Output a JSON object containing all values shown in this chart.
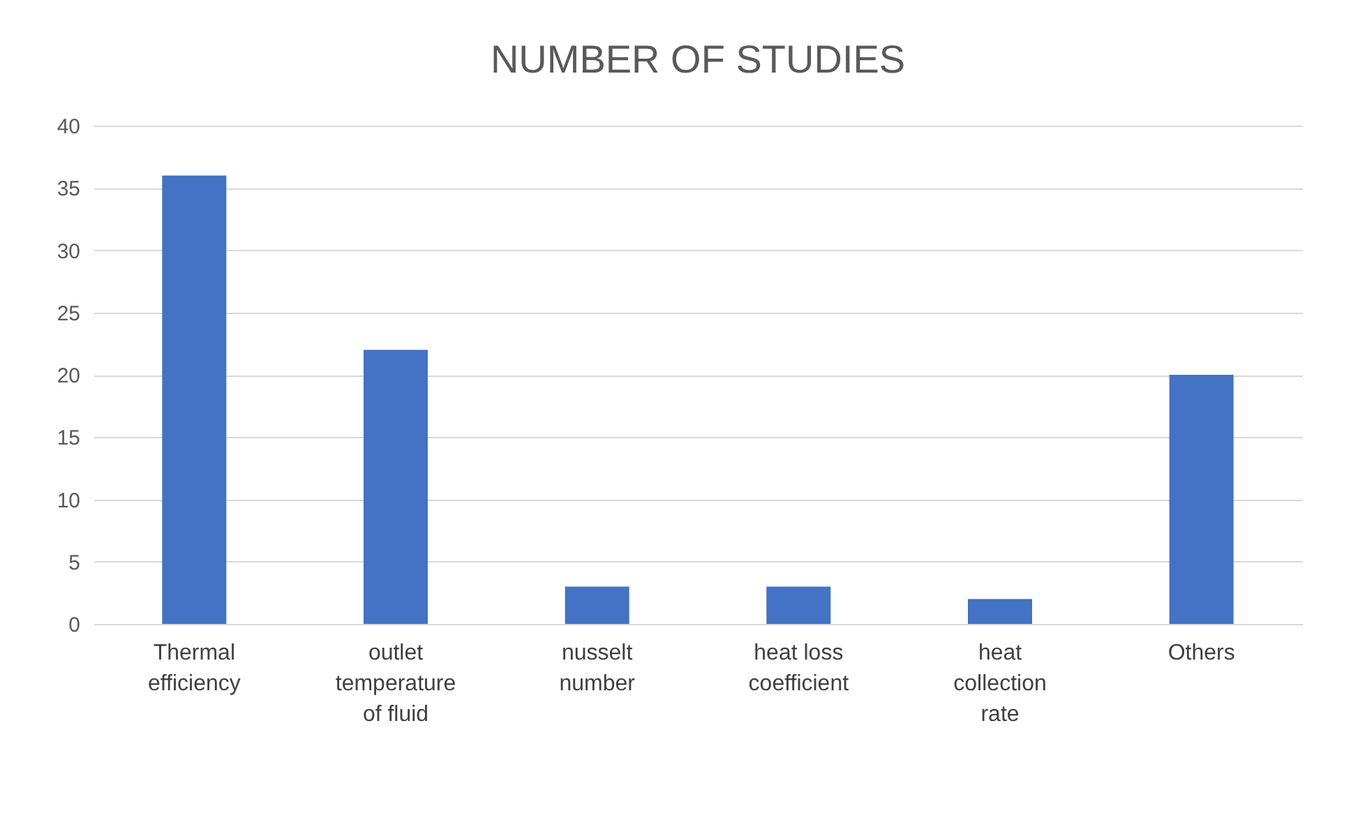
{
  "chart_data": {
    "type": "bar",
    "title": "NUMBER OF STUDIES",
    "categories": [
      "Thermal efficiency",
      "outlet temperature of fluid",
      "nusselt number",
      "heat loss coefficient",
      "heat collection rate",
      "Others"
    ],
    "values": [
      36,
      22,
      3,
      3,
      2,
      20
    ],
    "color": "#4472c4",
    "ylim": [
      0,
      40
    ],
    "yticks": [
      0,
      5,
      10,
      15,
      20,
      25,
      30,
      35,
      40
    ],
    "grid": "y"
  }
}
